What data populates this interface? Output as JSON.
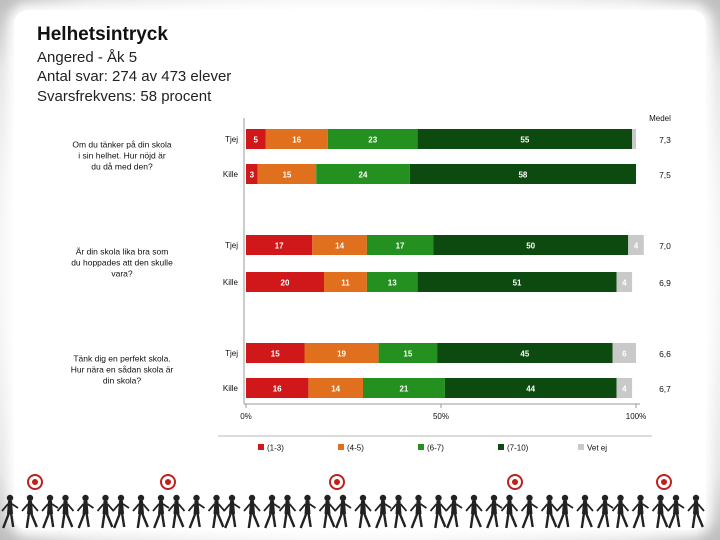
{
  "header": {
    "title": "Helhetsintryck",
    "subtitle_school": "Angered - Åk 5",
    "subtitle_responses": "Antal svar: 274 av 473 elever",
    "subtitle_rate": "Svarsfrekvens: 58 procent"
  },
  "colors": {
    "c1_3": "#d0181b",
    "c4_5": "#e0701e",
    "c6_7": "#23901f",
    "c7_10": "#0c4a0f",
    "vet_ej": "#c9c9c9"
  },
  "chart_data": {
    "type": "stacked-bar-horizontal",
    "title": "Helhetsintryck",
    "medel_label": "Medel",
    "x_ticks": [
      "0%",
      "50%",
      "100%"
    ],
    "xlim": [
      0,
      100
    ],
    "legend": [
      "(1-3)",
      "(4-5)",
      "(6-7)",
      "(7-10)",
      "Vet ej"
    ],
    "legend_position": "bottom",
    "questions": [
      {
        "text": "Om du tänker på din skola i sin helhet. Hur nöjd är du då med den?",
        "rows": [
          {
            "label": "Tjej",
            "values": [
              5,
              16,
              23,
              55,
              1
            ],
            "medel": "7,3"
          },
          {
            "label": "Kille",
            "values": [
              3,
              15,
              24,
              58,
              0
            ],
            "medel": "7,5"
          }
        ]
      },
      {
        "text": "Är din skola lika bra som du hoppades att den skulle vara?",
        "rows": [
          {
            "label": "Tjej",
            "values": [
              17,
              14,
              17,
              50,
              4
            ],
            "medel": "7,0"
          },
          {
            "label": "Kille",
            "values": [
              20,
              11,
              13,
              51,
              4
            ],
            "medel": "6,9"
          }
        ]
      },
      {
        "text": "Tänk dig en perfekt skola. Hur nära en sådan skola är din skola?",
        "rows": [
          {
            "label": "Tjej",
            "values": [
              15,
              19,
              15,
              45,
              6
            ],
            "medel": "6,6"
          },
          {
            "label": "Kille",
            "values": [
              16,
              14,
              21,
              44,
              4
            ],
            "medel": "6,7"
          }
        ]
      }
    ]
  }
}
